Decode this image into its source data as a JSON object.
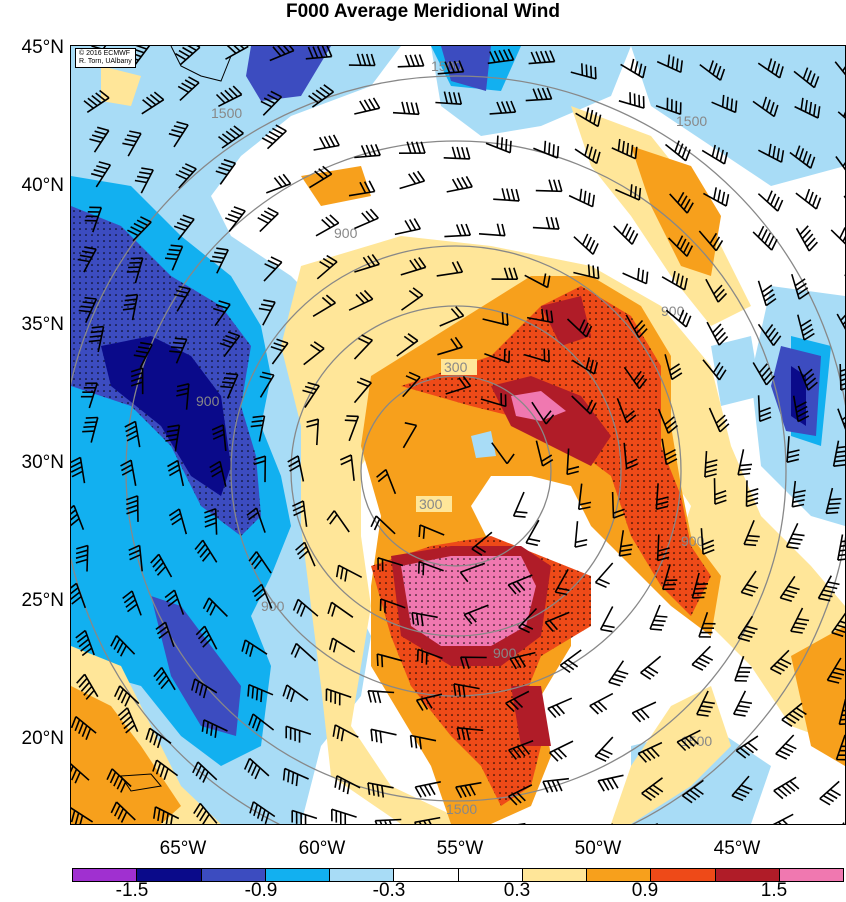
{
  "title": "F000 Average Meridional Wind",
  "credit": {
    "line1": "© 2016 ECMWF",
    "line2": "R. Torn, UAlbany"
  },
  "latitude_labels": [
    "45°N",
    "40°N",
    "35°N",
    "30°N",
    "25°N",
    "20°N"
  ],
  "longitude_labels": [
    "65°W",
    "60°W",
    "55°W",
    "50°W",
    "45°W"
  ],
  "contour_labels": [
    "300",
    "300",
    "900",
    "900",
    "900",
    "900",
    "900",
    "900",
    "1500",
    "1500",
    "1500",
    "1500",
    "1500"
  ],
  "colorbar": {
    "colors": [
      "#a030d0",
      "#0a0a8a",
      "#3c4cc0",
      "#12b0f0",
      "#a8dcf6",
      "#ffffff",
      "#ffffff",
      "#ffe699",
      "#f7a01c",
      "#ee4a18",
      "#b01c28",
      "#f078b0"
    ],
    "labels": [
      "-1.5",
      "-0.9",
      "-0.3",
      "0.3",
      "0.9",
      "1.5"
    ]
  }
}
